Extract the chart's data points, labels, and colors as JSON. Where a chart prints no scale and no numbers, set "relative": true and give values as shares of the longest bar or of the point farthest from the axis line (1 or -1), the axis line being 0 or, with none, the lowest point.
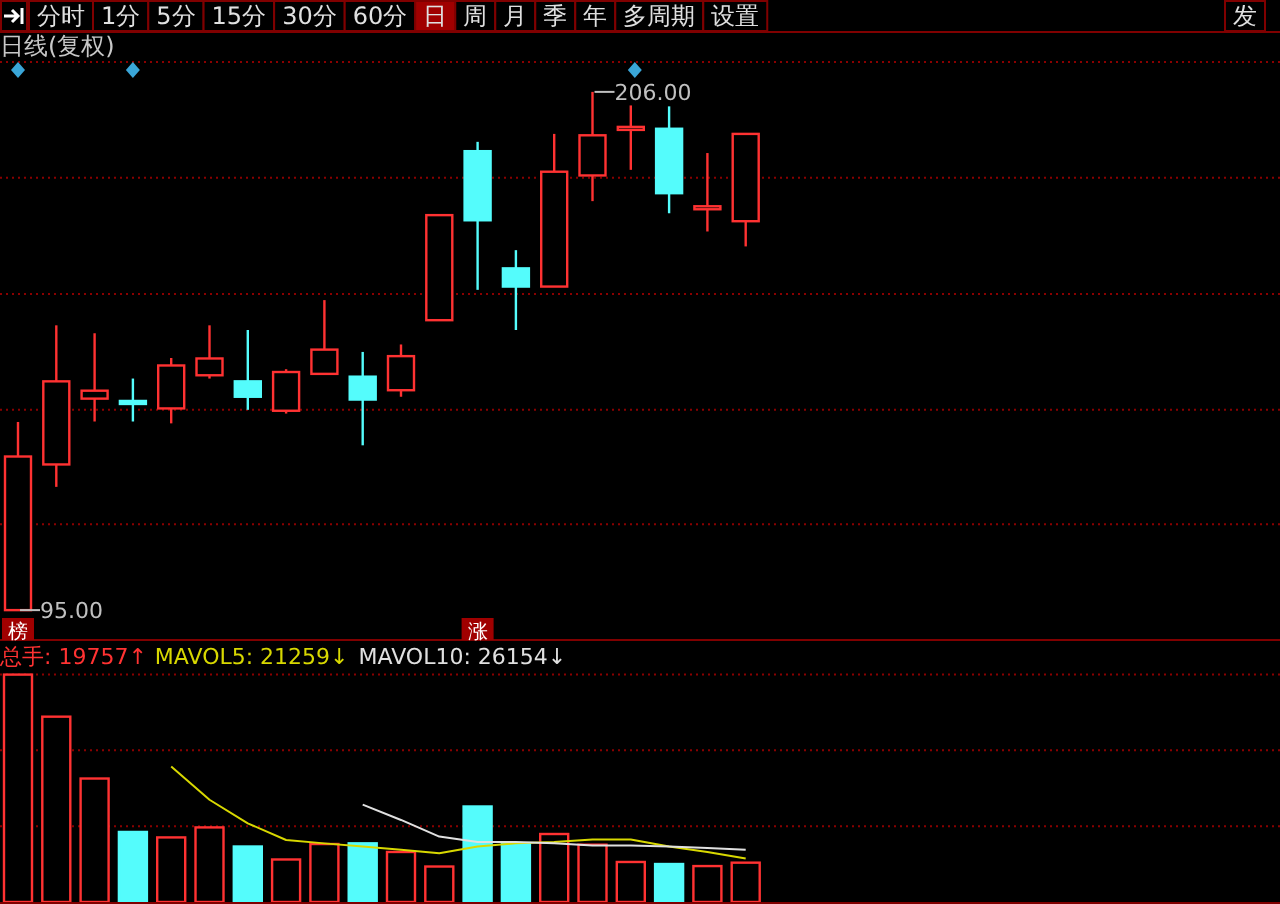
{
  "chart_data": [
    {
      "type": "other",
      "annotations": [
        "分时",
        "1分",
        "5分",
        "15分",
        "30分",
        "60分",
        "日",
        "周",
        "月",
        "季",
        "年",
        "多周期",
        "设置",
        "发"
      ]
    },
    {
      "type": "candlestick",
      "title": "日线(复权)",
      "categories": [
        null,
        null,
        null,
        null,
        null,
        null,
        null,
        null,
        null,
        null,
        null,
        null,
        null,
        null,
        null,
        null,
        null,
        null,
        null,
        null
      ],
      "ohlc": [
        [
          95.0,
          135.3,
          95.0,
          127.9
        ],
        [
          126.2,
          156.0,
          121.4,
          144.0
        ],
        [
          140.3,
          154.3,
          135.4,
          142.0
        ],
        [
          139.8,
          144.6,
          135.4,
          139.6
        ],
        [
          138.2,
          149.0,
          135.0,
          147.4
        ],
        [
          145.3,
          156.0,
          144.6,
          148.9
        ],
        [
          144.0,
          155.0,
          137.9,
          140.7
        ],
        [
          137.7,
          146.6,
          137.1,
          146.0
        ],
        [
          145.6,
          161.4,
          145.6,
          150.8
        ],
        [
          145.0,
          150.3,
          130.3,
          140.1
        ],
        [
          142.1,
          151.9,
          140.7,
          149.4
        ],
        [
          157.1,
          179.6,
          157.1,
          179.6
        ],
        [
          193.3,
          195.3,
          163.6,
          178.5
        ],
        [
          168.2,
          172.1,
          155.0,
          164.3
        ],
        [
          164.3,
          197.0,
          164.3,
          188.9
        ],
        [
          188.1,
          206.0,
          182.6,
          196.7
        ],
        [
          198.3,
          203.1,
          189.3,
          198.5
        ],
        [
          198.1,
          202.9,
          180.0,
          184.3
        ],
        [
          181.4,
          192.9,
          176.1,
          181.5
        ],
        [
          178.3,
          197.0,
          172.9,
          197.0
        ]
      ],
      "colors": [
        "#ff3232",
        "#ff3232",
        "#ff3232",
        "#54fcfc",
        "#ff3232",
        "#ff3232",
        "#54fcfc",
        "#ff3232",
        "#ff3232",
        "#54fcfc",
        "#ff3232",
        "#ff3232",
        "#54fcfc",
        "#54fcfc",
        "#ff3232",
        "#ff3232",
        "#ff3232",
        "#54fcfc",
        "#ff3232",
        "#ff3232"
      ],
      "grid": true,
      "ylim": [
        88.6,
        212.4
      ],
      "yticks": [
        {
          "value": 113.4,
          "label": null
        },
        {
          "value": 137.9,
          "label": null
        },
        {
          "value": 162.7,
          "label": null
        },
        {
          "value": 187.6,
          "label": null
        },
        {
          "value": 212.4,
          "label": null
        }
      ],
      "annotations": [
        "榜",
        "涨",
        "206.00",
        "95.00"
      ]
    },
    {
      "type": "bar",
      "relative": true,
      "categories": [
        null,
        null,
        null,
        null,
        null,
        null,
        null,
        null,
        null,
        null,
        null,
        null,
        null,
        null,
        null,
        null,
        null,
        null,
        null,
        null
      ],
      "ref_lines": [
        {
          "axis": "y",
          "value": 1.0,
          "color": "#8a0000",
          "line_style": "dotted"
        },
        {
          "axis": "y",
          "value": 0.667,
          "color": "#8a0000",
          "line_style": "dotted"
        },
        {
          "axis": "y",
          "value": 0.333,
          "color": "#8a0000",
          "line_style": "dotted"
        }
      ],
      "series": [
        {
          "name": "总手: 19757↑",
          "color": "#ff3232",
          "colors": [
            "#ff3232",
            "#ff3232",
            "#ff3232",
            "#54fcfc",
            "#ff3232",
            "#ff3232",
            "#54fcfc",
            "#ff3232",
            "#ff3232",
            "#54fcfc",
            "#ff3232",
            "#ff3232",
            "#54fcfc",
            "#54fcfc",
            "#ff3232",
            "#ff3232",
            "#ff3232",
            "#54fcfc",
            "#ff3232",
            "#ff3232"
          ],
          "values": [
            1.0,
            0.815,
            0.543,
            0.308,
            0.284,
            0.328,
            0.244,
            0.187,
            0.255,
            0.258,
            0.22,
            0.156,
            0.42,
            0.258,
            0.299,
            0.252,
            0.176,
            0.167,
            0.158,
            0.173
          ]
        }
      ]
    },
    {
      "type": "line",
      "relative": true,
      "categories": [
        null,
        null,
        null,
        null,
        null,
        null,
        null,
        null,
        null,
        null,
        null,
        null,
        null,
        null,
        null,
        null,
        null,
        null,
        null,
        null
      ],
      "series": [
        {
          "name": "MAVOL5: 21259↓",
          "color": "#d8d800",
          "values": [
            null,
            null,
            null,
            null,
            1.0,
            0.755,
            0.581,
            0.458,
            0.433,
            0.41,
            0.385,
            0.36,
            0.41,
            0.433,
            0.443,
            0.462,
            0.462,
            0.41,
            0.37,
            0.321
          ]
        },
        {
          "name": "MAVOL10: 26154↓",
          "color": "#e0e0e0",
          "values": [
            null,
            null,
            null,
            null,
            null,
            null,
            null,
            null,
            null,
            0.719,
            0.606,
            0.483,
            0.443,
            0.443,
            0.433,
            0.418,
            0.418,
            0.41,
            0.398,
            0.385
          ]
        }
      ]
    }
  ]
}
